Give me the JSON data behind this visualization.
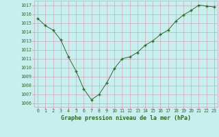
{
  "x": [
    0,
    1,
    2,
    3,
    4,
    5,
    6,
    7,
    8,
    9,
    10,
    11,
    12,
    13,
    14,
    15,
    16,
    17,
    18,
    19,
    20,
    21,
    22,
    23
  ],
  "y": [
    1015.5,
    1014.7,
    1014.2,
    1013.1,
    1011.2,
    1009.6,
    1007.6,
    1006.4,
    1007.0,
    1008.3,
    1009.9,
    1011.0,
    1011.2,
    1011.7,
    1012.5,
    1013.0,
    1013.7,
    1014.2,
    1015.2,
    1015.9,
    1016.4,
    1017.0,
    1016.9,
    1016.8
  ],
  "ylim": [
    1005.6,
    1017.5
  ],
  "yticks": [
    1006,
    1007,
    1008,
    1009,
    1010,
    1011,
    1012,
    1013,
    1014,
    1015,
    1016,
    1017
  ],
  "xticks": [
    0,
    1,
    2,
    3,
    4,
    5,
    6,
    7,
    8,
    9,
    10,
    11,
    12,
    13,
    14,
    15,
    16,
    17,
    18,
    19,
    20,
    21,
    22,
    23
  ],
  "xlabel": "Graphe pression niveau de la mer (hPa)",
  "line_color": "#2d6a2d",
  "marker": "+",
  "bg_color": "#c8eeee",
  "grid_color": "#c8a8b8",
  "tick_label_color": "#2d6a2d",
  "xlabel_color": "#2d6a2d",
  "xlabel_fontsize": 6.0,
  "tick_fontsize": 4.8
}
